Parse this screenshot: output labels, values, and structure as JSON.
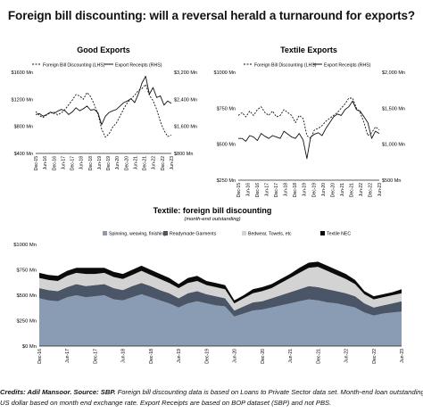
{
  "title": "Foreign bill discounting: will a reversal herald a turnaround for exports?",
  "credits": {
    "author": "Credits: Adil Mansoor. Source: SBP.",
    "line1": " Foreign bill discounting data is based on Loans to Private Sector data set. Month-end loan outstanding in Pak Rupee converted to",
    "line2": "US dollar based on month end exchange rate. Export Receipts are based on BOP dataset (SBP) and not PBS."
  },
  "colors": {
    "spinning": "#8a9bb4",
    "readymade": "#4a5568",
    "bedwear": "#d3d3d3",
    "textile_nec": "#0b0b0b"
  },
  "date_ticks_small": [
    "Dec-15",
    "Jun-16",
    "Dec-16",
    "Jun-17",
    "Dec-17",
    "Jun-18",
    "Dec-18",
    "Jun-19",
    "Dec-19",
    "Jun-20",
    "Dec-20",
    "Jun-21",
    "Dec-21",
    "Jun-22",
    "Dec-22",
    "Jun-23"
  ],
  "date_ticks_big": [
    "Dec-16",
    "Jun-17",
    "Dec-17",
    "Jun-18",
    "Dec-18",
    "Jun-19",
    "Dec-19",
    "Jun-20",
    "Dec-20",
    "Jun-21",
    "Dec-21",
    "Jun-22",
    "Dec-22",
    "Jun-23"
  ],
  "chart_data": [
    {
      "type": "line",
      "title": "Good Exports",
      "x_range": [
        "Dec-15",
        "Jun-23"
      ],
      "left_axis": {
        "ticks": [
          "$400 Mn",
          "$800 Mn",
          "$1200 Mn",
          "$1600 Mn"
        ],
        "ylim": [
          400,
          1600
        ]
      },
      "right_axis": {
        "ticks": [
          "$800 Mn",
          "$1,600 Mn",
          "$2,400 Mn",
          "$3,200 Mn"
        ],
        "ylim": [
          800,
          3200
        ]
      },
      "series": [
        {
          "name": "Foreign Bill Discounting (LHS)",
          "axis": "left",
          "dash": true,
          "values": [
            1020,
            960,
            930,
            970,
            1000,
            1010,
            970,
            1000,
            1050,
            1120,
            1190,
            1270,
            1250,
            1200,
            1300,
            1240,
            1120,
            980,
            760,
            640,
            690,
            790,
            850,
            950,
            1060,
            1150,
            1210,
            1260,
            1330,
            1360,
            1420,
            1260,
            1180,
            1050,
            870,
            740,
            650,
            670
          ]
        },
        {
          "name": "Export Receipts (RHS)",
          "axis": "right",
          "values": [
            1950,
            1980,
            1900,
            1950,
            2020,
            1980,
            2050,
            2100,
            2060,
            1950,
            2030,
            2150,
            2060,
            2120,
            2200,
            2080,
            2100,
            2000,
            1650,
            1900,
            2010,
            2060,
            2100,
            2200,
            2300,
            2350,
            2420,
            2300,
            2550,
            2880,
            3080,
            2550,
            2750,
            2450,
            2500,
            2230,
            2350,
            2280
          ]
        }
      ]
    },
    {
      "type": "line",
      "title": "Textile Exports",
      "x_range": [
        "Dec-15",
        "Jun-23"
      ],
      "left_axis": {
        "ticks": [
          "$250 Mn",
          "$500 Mn",
          "$750 Mn",
          "$1000 Mn"
        ],
        "ylim": [
          250,
          1000
        ]
      },
      "right_axis": {
        "ticks": [
          "$500 Mn",
          "$1,000 Mn",
          "$1,500 Mn",
          "$2,000 Mn"
        ],
        "ylim": [
          500,
          2000
        ]
      },
      "series": [
        {
          "name": "Foreign Bill Discounting (LHS)",
          "axis": "left",
          "dash": true,
          "values": [
            700,
            720,
            690,
            730,
            700,
            740,
            760,
            720,
            700,
            730,
            690,
            700,
            740,
            720,
            700,
            650,
            700,
            680,
            560,
            540,
            600,
            610,
            630,
            660,
            680,
            700,
            720,
            750,
            780,
            820,
            820,
            750,
            720,
            650,
            560,
            580,
            620,
            600
          ]
        },
        {
          "name": "Export Receipts (RHS)",
          "axis": "right",
          "values": [
            1080,
            1080,
            1040,
            1120,
            1100,
            1050,
            1150,
            1110,
            1080,
            1120,
            1100,
            1080,
            1180,
            1140,
            1100,
            1080,
            1150,
            1060,
            800,
            1100,
            1140,
            1160,
            1120,
            1220,
            1300,
            1380,
            1420,
            1400,
            1480,
            1520,
            1600,
            1480,
            1460,
            1380,
            1300,
            1080,
            1180,
            1150
          ]
        }
      ]
    },
    {
      "type": "area",
      "stacked": true,
      "title": "Textile: foreign bill discounting",
      "subtitle": "(month-end outstanding)",
      "x_range": [
        "Dec-16",
        "Jun-23"
      ],
      "ylim": [
        0,
        1000
      ],
      "y_ticks": [
        "$0 Mn",
        "$250 Mn",
        "$500 Mn",
        "$750 Mn",
        "$1000 Mn"
      ],
      "series": [
        {
          "name": "Spinning, weaving, finishing",
          "color_key": "spinning",
          "values": [
            470,
            450,
            440,
            480,
            500,
            480,
            490,
            500,
            460,
            450,
            480,
            510,
            480,
            450,
            420,
            380,
            420,
            440,
            420,
            400,
            390,
            290,
            320,
            350,
            360,
            380,
            400,
            420,
            440,
            460,
            450,
            430,
            420,
            400,
            380,
            330,
            300,
            320,
            330,
            340
          ]
        },
        {
          "name": "Readymade Garments",
          "color_key": "readymade",
          "values": [
            100,
            100,
            100,
            100,
            110,
            110,
            110,
            110,
            110,
            100,
            110,
            110,
            110,
            100,
            100,
            90,
            100,
            100,
            90,
            90,
            80,
            60,
            70,
            80,
            80,
            90,
            100,
            110,
            120,
            130,
            130,
            130,
            120,
            120,
            110,
            90,
            80,
            80,
            90,
            100
          ]
        },
        {
          "name": "Bedwear, Towels, etc",
          "color_key": "bedwear",
          "values": [
            100,
            100,
            100,
            110,
            110,
            120,
            110,
            110,
            110,
            110,
            110,
            120,
            110,
            110,
            100,
            100,
            100,
            100,
            90,
            90,
            90,
            70,
            80,
            90,
            100,
            100,
            120,
            140,
            160,
            180,
            200,
            180,
            160,
            140,
            120,
            90,
            80,
            80,
            80,
            80
          ]
        },
        {
          "name": "Textile NEC",
          "color_key": "textile_nec",
          "values": [
            50,
            50,
            50,
            50,
            50,
            60,
            60,
            50,
            50,
            50,
            50,
            50,
            50,
            50,
            50,
            40,
            50,
            50,
            40,
            40,
            40,
            30,
            30,
            40,
            40,
            40,
            40,
            40,
            50,
            50,
            50,
            50,
            50,
            50,
            40,
            30,
            30,
            30,
            30,
            40
          ]
        }
      ]
    }
  ]
}
